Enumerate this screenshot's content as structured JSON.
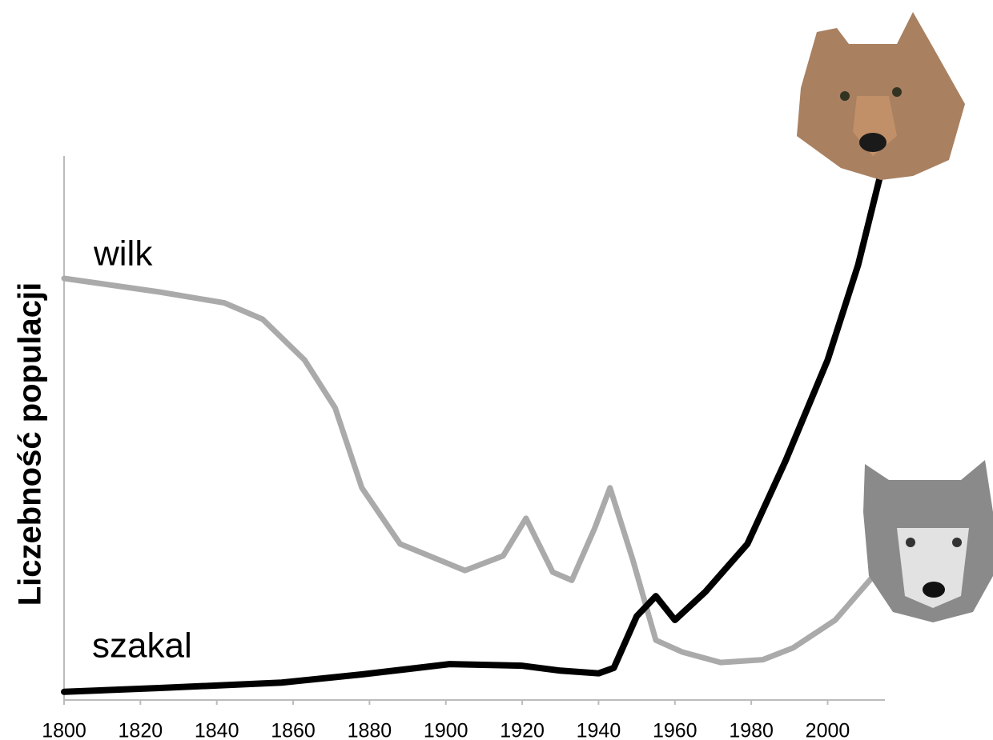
{
  "chart_data": {
    "type": "line",
    "y_label": "Liczebność populacji",
    "x": [],
    "xlim": [
      1800,
      2015
    ],
    "xticks": [
      1800,
      1820,
      1840,
      1860,
      1880,
      1900,
      1920,
      1940,
      1960,
      1980,
      2000
    ],
    "ylim": [
      0,
      100
    ],
    "series": [
      {
        "name": "wilk",
        "color": "#aaaaaa",
        "x": [
          1800,
          1825,
          1842,
          1852,
          1863,
          1871,
          1878,
          1888,
          1905,
          1915,
          1921,
          1928,
          1933,
          1939,
          1943,
          1949,
          1955,
          1962,
          1972,
          1983,
          1991,
          2002,
          2012
        ],
        "values": [
          77.5,
          75,
          73,
          70,
          62.5,
          53.7,
          39,
          28.7,
          23.8,
          26.5,
          33.4,
          23.5,
          22,
          31.6,
          39,
          25.7,
          11,
          8.8,
          6.9,
          7.4,
          9.6,
          14.7,
          22.8
        ]
      },
      {
        "name": "szakal",
        "color": "#000000",
        "x": [
          1800,
          1825,
          1857,
          1878,
          1901,
          1920,
          1930,
          1940,
          1944,
          1950,
          1955,
          1960,
          1968,
          1979,
          1989,
          2000,
          2008,
          2014
        ],
        "values": [
          1.5,
          2.2,
          3.2,
          4.7,
          6.6,
          6.3,
          5.4,
          4.9,
          5.9,
          15.4,
          19.1,
          14.7,
          19.9,
          28.7,
          44,
          62.5,
          80,
          97
        ]
      }
    ]
  }
}
